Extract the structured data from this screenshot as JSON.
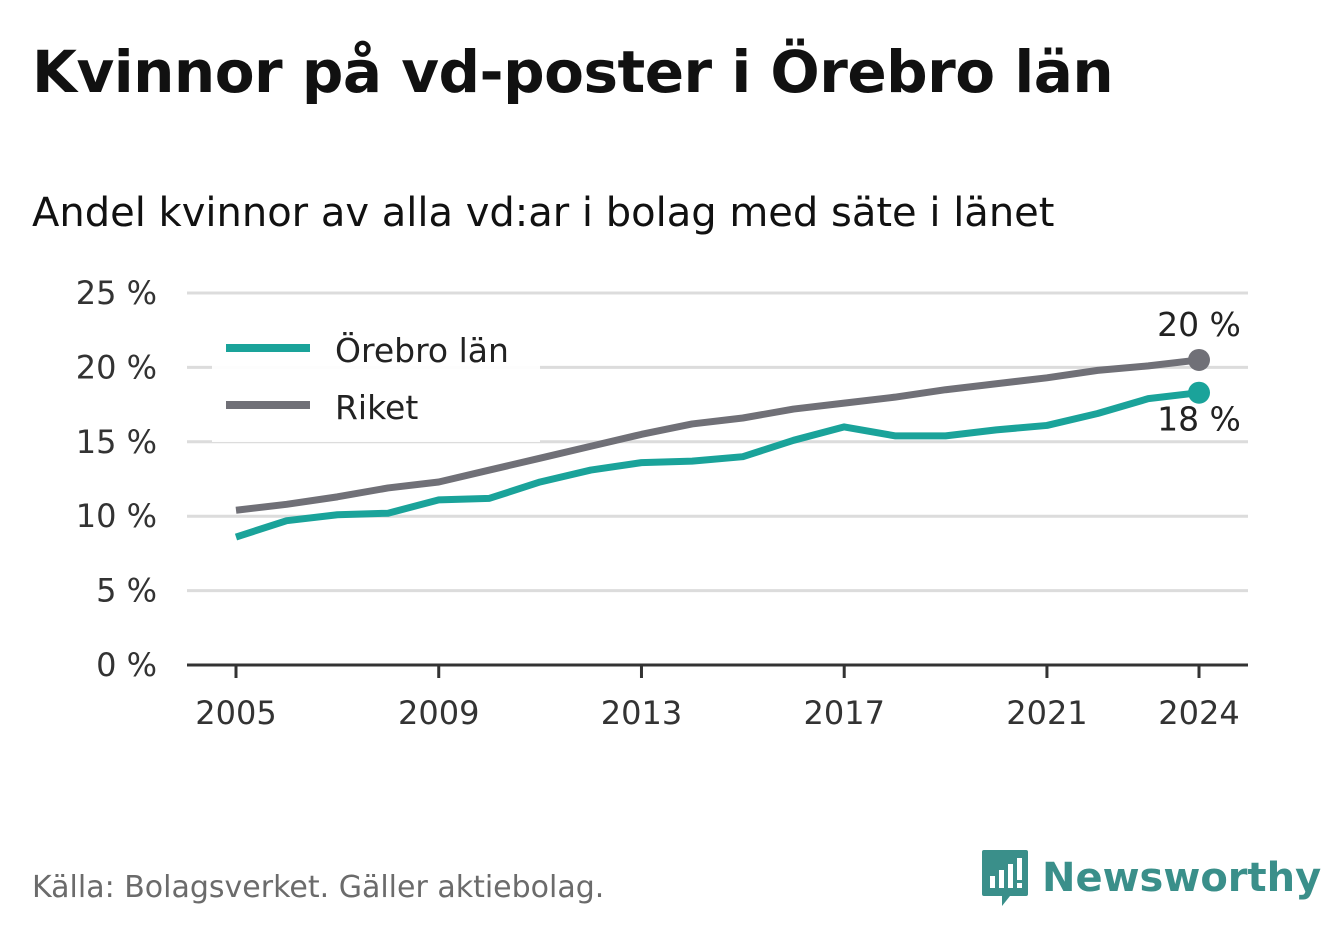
{
  "title": "Kvinnor på vd-poster i Örebro län",
  "subtitle": "Andel kvinnor av alla vd:ar i bolag med säte i länet",
  "source": "Källa: Bolagsverket. Gäller aktiebolag.",
  "brand": "Newsworthy",
  "colors": {
    "orebro": "#1aa39a",
    "riket": "#707077",
    "grid": "#dcdcdc",
    "axis": "#333333",
    "brand": "#3a8f8a"
  },
  "chart_data": {
    "type": "line",
    "title": "Kvinnor på vd-poster i Örebro län",
    "subtitle": "Andel kvinnor av alla vd:ar i bolag med säte i länet",
    "x": [
      2005,
      2006,
      2007,
      2008,
      2009,
      2010,
      2011,
      2012,
      2013,
      2014,
      2015,
      2016,
      2017,
      2018,
      2019,
      2020,
      2021,
      2022,
      2023,
      2024
    ],
    "x_ticks": [
      2005,
      2009,
      2013,
      2017,
      2021,
      2024
    ],
    "y_ticks": [
      0,
      5,
      10,
      15,
      20,
      25
    ],
    "y_tick_labels": [
      "0 %",
      "5 %",
      "10 %",
      "15 %",
      "20 %",
      "25 %"
    ],
    "ylim": [
      0,
      25
    ],
    "grid": true,
    "legend_position": "top-left",
    "series": [
      {
        "name": "Örebro län",
        "color": "#1aa39a",
        "values": [
          8.6,
          9.7,
          10.1,
          10.2,
          11.1,
          11.2,
          12.3,
          13.1,
          13.6,
          13.7,
          14.0,
          15.1,
          16.0,
          15.4,
          15.4,
          15.8,
          16.1,
          16.9,
          17.9,
          18.3
        ],
        "end_label": "18 %"
      },
      {
        "name": "Riket",
        "color": "#707077",
        "values": [
          10.4,
          10.8,
          11.3,
          11.9,
          12.3,
          13.1,
          13.9,
          14.7,
          15.5,
          16.2,
          16.6,
          17.2,
          17.6,
          18.0,
          18.5,
          18.9,
          19.3,
          19.8,
          20.1,
          20.5
        ],
        "end_label": "20 %"
      }
    ]
  }
}
